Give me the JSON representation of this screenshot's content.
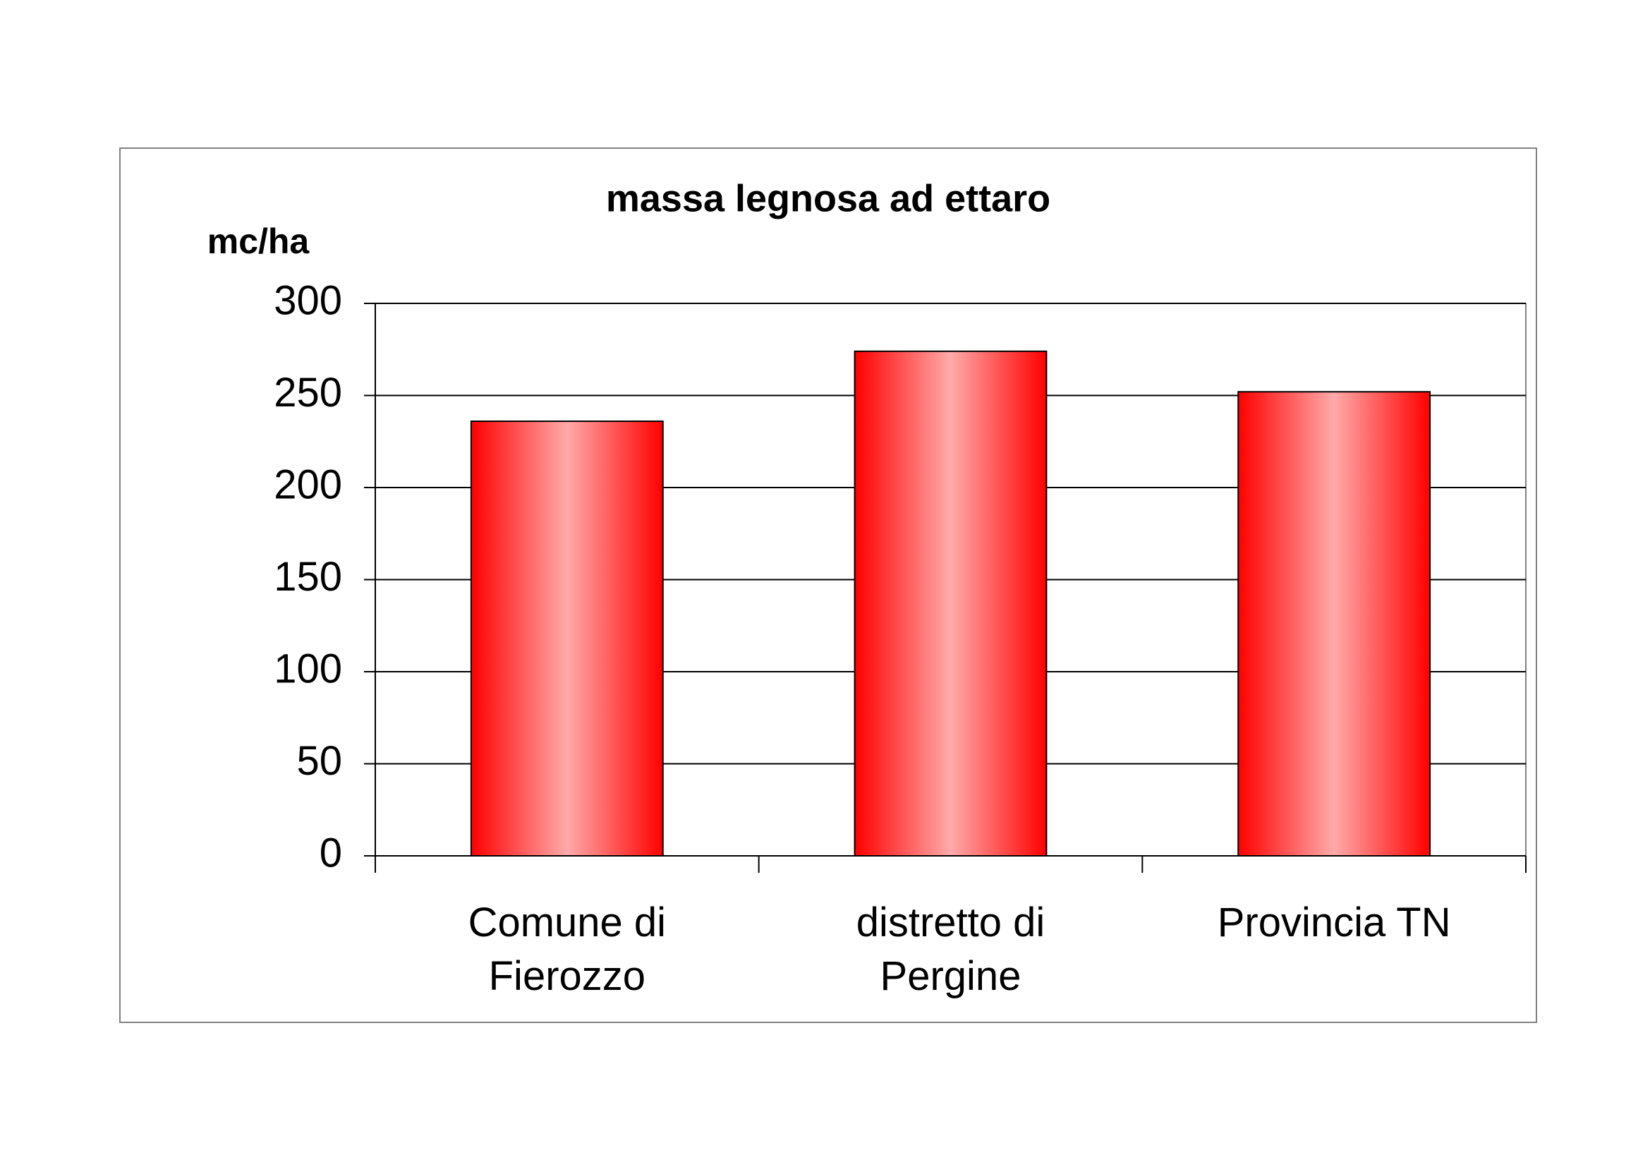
{
  "chart_data": {
    "type": "bar",
    "title": "massa legnosa ad ettaro",
    "y_label": "mc/ha",
    "categories": [
      "Comune di Fierozzo",
      "distretto di Pergine",
      "Provincia TN"
    ],
    "values": [
      236,
      274,
      252
    ],
    "color": "#ff0000",
    "ylim": [
      0,
      300
    ],
    "yticks": [
      0,
      50,
      100,
      150,
      200,
      250,
      300
    ],
    "grid": true
  }
}
